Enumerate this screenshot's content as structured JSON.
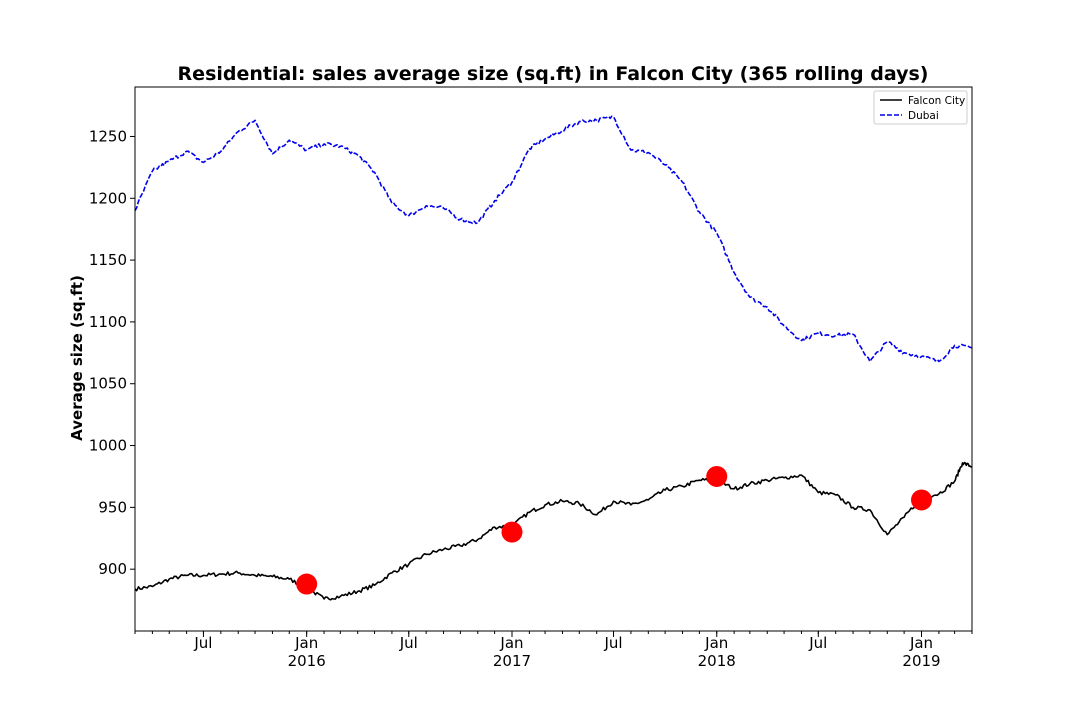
{
  "chart_data": {
    "type": "line",
    "title": "Residential: sales average size (sq.ft) in Falcon City (365 rolling days)",
    "ylabel": "Average size (sq.ft)",
    "xlabel": "",
    "xlim": [
      "2015-03-01",
      "2019-04-01"
    ],
    "ylim": [
      850,
      1290
    ],
    "yticks": [
      900,
      950,
      1000,
      1050,
      1100,
      1150,
      1200,
      1250
    ],
    "xticks": [
      {
        "date": "2015-07-01",
        "label": "Jul",
        "sublabel": ""
      },
      {
        "date": "2016-01-01",
        "label": "Jan",
        "sublabel": "2016"
      },
      {
        "date": "2016-07-01",
        "label": "Jul",
        "sublabel": ""
      },
      {
        "date": "2017-01-01",
        "label": "Jan",
        "sublabel": "2017"
      },
      {
        "date": "2017-07-01",
        "label": "Jul",
        "sublabel": ""
      },
      {
        "date": "2018-01-01",
        "label": "Jan",
        "sublabel": "2018"
      },
      {
        "date": "2018-07-01",
        "label": "Jul",
        "sublabel": ""
      },
      {
        "date": "2019-01-01",
        "label": "Jan",
        "sublabel": "2019"
      }
    ],
    "legend_position": "top-right",
    "grid": false,
    "series": [
      {
        "name": "Falcon City",
        "color": "#000000",
        "dash": "solid",
        "points": [
          [
            "2015-03-01",
            884
          ],
          [
            "2015-04-01",
            886
          ],
          [
            "2015-05-01",
            892
          ],
          [
            "2015-06-01",
            895
          ],
          [
            "2015-07-01",
            895
          ],
          [
            "2015-08-01",
            896
          ],
          [
            "2015-09-01",
            897
          ],
          [
            "2015-10-01",
            895
          ],
          [
            "2015-11-01",
            894
          ],
          [
            "2015-12-01",
            892
          ],
          [
            "2016-01-01",
            885
          ],
          [
            "2016-02-01",
            876
          ],
          [
            "2016-03-01",
            878
          ],
          [
            "2016-04-01",
            882
          ],
          [
            "2016-05-01",
            887
          ],
          [
            "2016-06-01",
            897
          ],
          [
            "2016-07-01",
            904
          ],
          [
            "2016-08-01",
            912
          ],
          [
            "2016-09-01",
            916
          ],
          [
            "2016-10-01",
            919
          ],
          [
            "2016-11-01",
            924
          ],
          [
            "2016-12-01",
            934
          ],
          [
            "2017-01-01",
            935
          ],
          [
            "2017-02-01",
            946
          ],
          [
            "2017-03-01",
            952
          ],
          [
            "2017-04-01",
            955
          ],
          [
            "2017-05-01",
            953
          ],
          [
            "2017-06-01",
            944
          ],
          [
            "2017-07-01",
            955
          ],
          [
            "2017-08-01",
            952
          ],
          [
            "2017-09-01",
            956
          ],
          [
            "2017-10-01",
            964
          ],
          [
            "2017-11-01",
            967
          ],
          [
            "2017-12-01",
            972
          ],
          [
            "2018-01-01",
            972
          ],
          [
            "2018-02-01",
            965
          ],
          [
            "2018-03-01",
            969
          ],
          [
            "2018-04-01",
            972
          ],
          [
            "2018-05-01",
            974
          ],
          [
            "2018-06-01",
            976
          ],
          [
            "2018-07-01",
            962
          ],
          [
            "2018-08-01",
            960
          ],
          [
            "2018-09-01",
            950
          ],
          [
            "2018-10-01",
            948
          ],
          [
            "2018-11-01",
            928
          ],
          [
            "2018-12-01",
            942
          ],
          [
            "2019-01-01",
            958
          ],
          [
            "2019-02-01",
            961
          ],
          [
            "2019-03-01",
            971
          ],
          [
            "2019-03-15",
            986
          ],
          [
            "2019-04-01",
            983
          ]
        ]
      },
      {
        "name": "Dubai",
        "color": "#0000ee",
        "dash": "dashed",
        "points": [
          [
            "2015-03-01",
            1190
          ],
          [
            "2015-04-01",
            1222
          ],
          [
            "2015-05-01",
            1230
          ],
          [
            "2015-06-01",
            1238
          ],
          [
            "2015-07-01",
            1229
          ],
          [
            "2015-08-01",
            1238
          ],
          [
            "2015-09-01",
            1254
          ],
          [
            "2015-10-01",
            1263
          ],
          [
            "2015-11-01",
            1236
          ],
          [
            "2015-12-01",
            1247
          ],
          [
            "2016-01-01",
            1239
          ],
          [
            "2016-02-01",
            1244
          ],
          [
            "2016-03-01",
            1242
          ],
          [
            "2016-04-01",
            1235
          ],
          [
            "2016-05-01",
            1221
          ],
          [
            "2016-06-01",
            1196
          ],
          [
            "2016-07-01",
            1186
          ],
          [
            "2016-08-01",
            1194
          ],
          [
            "2016-09-01",
            1192
          ],
          [
            "2016-10-01",
            1183
          ],
          [
            "2016-11-01",
            1180
          ],
          [
            "2016-12-01",
            1198
          ],
          [
            "2017-01-01",
            1213
          ],
          [
            "2017-02-01",
            1240
          ],
          [
            "2017-03-01",
            1248
          ],
          [
            "2017-04-01",
            1255
          ],
          [
            "2017-05-01",
            1262
          ],
          [
            "2017-06-01",
            1263
          ],
          [
            "2017-07-01",
            1266
          ],
          [
            "2017-08-01",
            1239
          ],
          [
            "2017-09-01",
            1237
          ],
          [
            "2017-10-01",
            1227
          ],
          [
            "2017-11-01",
            1213
          ],
          [
            "2017-12-01",
            1189
          ],
          [
            "2018-01-01",
            1172
          ],
          [
            "2018-02-01",
            1140
          ],
          [
            "2018-03-01",
            1120
          ],
          [
            "2018-04-01",
            1112
          ],
          [
            "2018-05-01",
            1097
          ],
          [
            "2018-06-01",
            1085
          ],
          [
            "2018-07-01",
            1091
          ],
          [
            "2018-08-01",
            1089
          ],
          [
            "2018-09-01",
            1090
          ],
          [
            "2018-10-01",
            1068
          ],
          [
            "2018-11-01",
            1084
          ],
          [
            "2018-12-01",
            1075
          ],
          [
            "2019-01-01",
            1072
          ],
          [
            "2019-02-01",
            1068
          ],
          [
            "2019-03-01",
            1081
          ],
          [
            "2019-04-01",
            1079
          ]
        ]
      }
    ],
    "markers": [
      {
        "date": "2016-01-01",
        "value": 888,
        "color": "#ff0000"
      },
      {
        "date": "2017-01-01",
        "value": 930,
        "color": "#ff0000"
      },
      {
        "date": "2018-01-01",
        "value": 975,
        "color": "#ff0000"
      },
      {
        "date": "2019-01-01",
        "value": 956,
        "color": "#ff0000"
      }
    ]
  }
}
